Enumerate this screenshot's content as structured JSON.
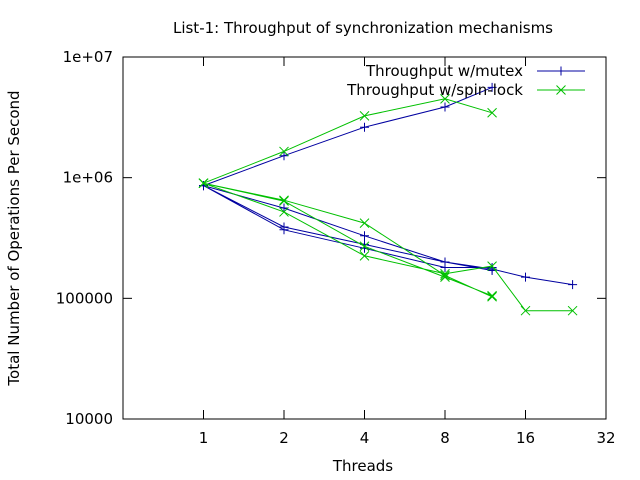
{
  "chart_data": {
    "type": "line",
    "title": "List-1: Throughput of synchronization mechanisms",
    "xlabel": "Threads",
    "ylabel": "Total Number of Operations Per Second",
    "x_scale": "log2",
    "y_scale": "log10",
    "xlim": [
      0.5,
      32
    ],
    "ylim": [
      10000,
      10000000
    ],
    "x_ticks": [
      1,
      2,
      4,
      8,
      16,
      32
    ],
    "x_tick_labels": [
      "1",
      "2",
      "4",
      "8",
      "16",
      "32"
    ],
    "y_ticks": [
      10000,
      100000,
      1000000,
      10000000
    ],
    "y_tick_labels": [
      "10000",
      "100000",
      "1e+06",
      "1e+07"
    ],
    "grid": false,
    "legend_position": "top-right",
    "series": [
      {
        "name": "Throughput w/mutex",
        "color": "#0000a0",
        "marker": "plus",
        "x": [
          1,
          2,
          4,
          8,
          12,
          null,
          1,
          2,
          4,
          8,
          12,
          null,
          1,
          2,
          4,
          8,
          12,
          null,
          1,
          2,
          4,
          8,
          12,
          16,
          24
        ],
        "y": [
          860000,
          1520000,
          2620000,
          3850000,
          5600000,
          null,
          860000,
          390000,
          280000,
          200000,
          170000,
          null,
          860000,
          370000,
          260000,
          180000,
          180000,
          null,
          860000,
          560000,
          330000,
          200000,
          175000,
          150000,
          130000
        ]
      },
      {
        "name": "Throughput w/spin-lock",
        "color": "#00c000",
        "marker": "cross",
        "x": [
          1,
          2,
          4,
          8,
          12,
          null,
          1,
          2,
          4,
          8,
          12,
          null,
          1,
          2,
          4,
          8,
          12,
          16,
          24,
          null,
          1,
          2,
          4,
          8,
          12
        ],
        "y": [
          900000,
          1650000,
          3250000,
          4500000,
          3450000,
          null,
          900000,
          650000,
          420000,
          155000,
          103000,
          null,
          900000,
          520000,
          225000,
          160000,
          185000,
          79000,
          79000,
          null,
          900000,
          640000,
          270000,
          150000,
          105000
        ]
      }
    ]
  }
}
